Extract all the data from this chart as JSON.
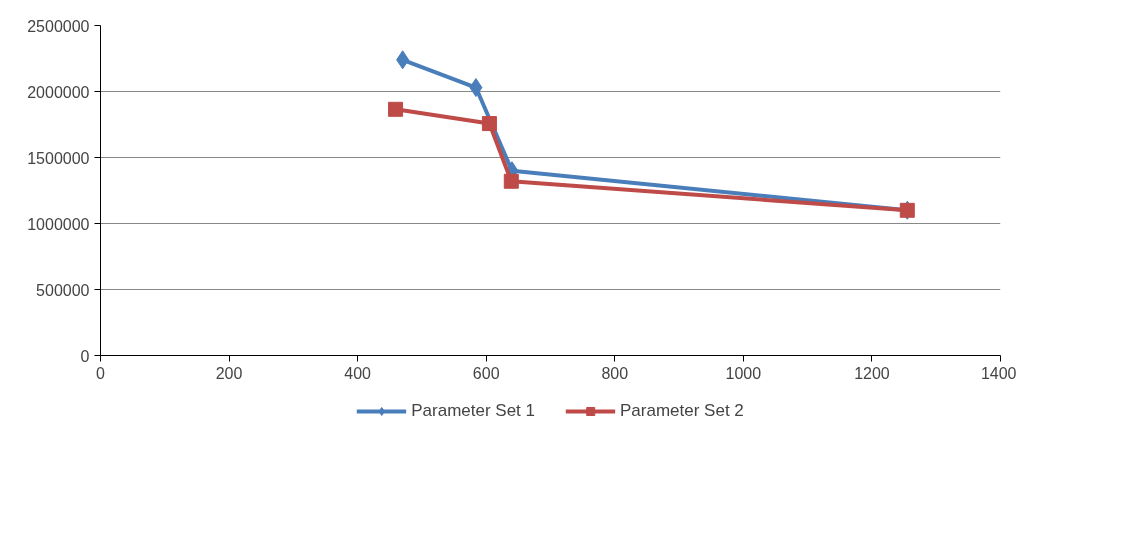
{
  "chart_data": {
    "type": "line",
    "xlim": [
      0,
      1400
    ],
    "xticks": [
      0,
      200,
      400,
      600,
      800,
      1000,
      1200,
      1400
    ],
    "ylim": [
      0,
      2500000
    ],
    "yticks": [
      0,
      500000,
      1000000,
      1500000,
      2000000,
      2500000
    ],
    "grid": "y",
    "legend": "bottom",
    "series": [
      {
        "name": "Parameter Set 1",
        "color": "#4a7ebb",
        "marker": "diamond",
        "x": [
          470,
          584,
          640,
          1255
        ],
        "values": [
          2240000,
          2030000,
          1400000,
          1100000
        ]
      },
      {
        "name": "Parameter Set 2",
        "color": "#be4b48",
        "marker": "square",
        "x": [
          459,
          605,
          639,
          1255
        ],
        "values": [
          1865000,
          1757000,
          1320000,
          1100000
        ]
      }
    ]
  }
}
